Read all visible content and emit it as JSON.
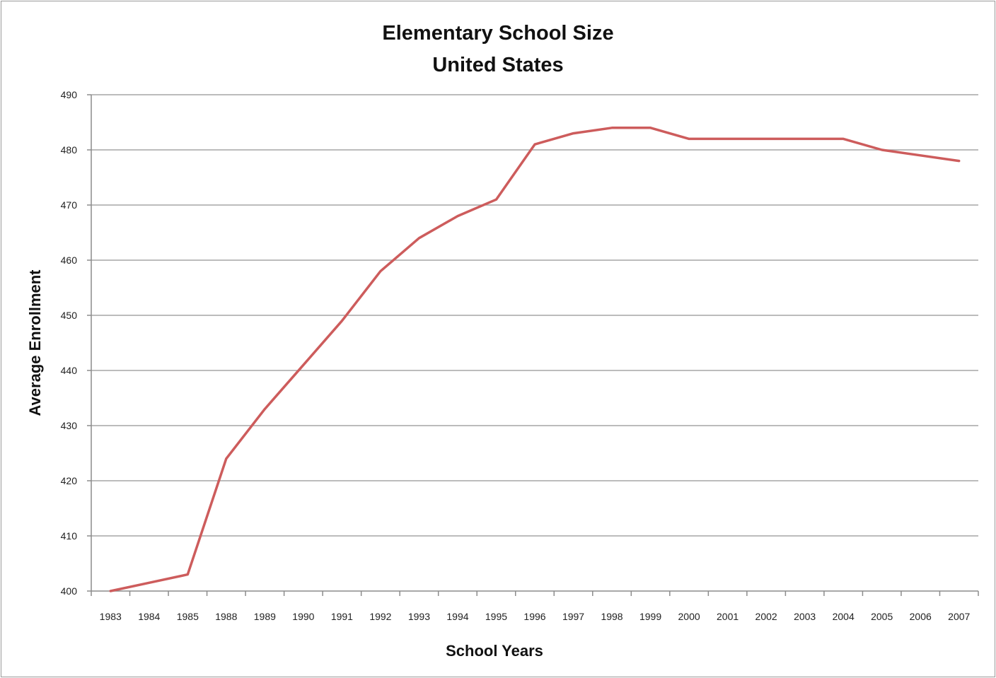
{
  "chart_data": {
    "type": "line",
    "title": "Elementary School Size",
    "subtitle": "United States",
    "xlabel": "School Years",
    "ylabel": "Average Enrollment",
    "categories": [
      "1983",
      "1984",
      "1985",
      "1988",
      "1989",
      "1990",
      "1991",
      "1992",
      "1993",
      "1994",
      "1995",
      "1996",
      "1997",
      "1998",
      "1999",
      "2000",
      "2001",
      "2002",
      "2003",
      "2004",
      "2005",
      "2006",
      "2007"
    ],
    "ylim": [
      400,
      490
    ],
    "yticks": [
      "400",
      "410",
      "420",
      "430",
      "440",
      "450",
      "460",
      "470",
      "480",
      "490"
    ],
    "series": [
      {
        "values": [
          400,
          401.5,
          403,
          424,
          433,
          441,
          449,
          458,
          464,
          468,
          471,
          481,
          483,
          484,
          484,
          482,
          482,
          482,
          482,
          482,
          480,
          479,
          478
        ],
        "color": "#cd5c5c"
      }
    ],
    "grid": true,
    "legend": "none"
  }
}
